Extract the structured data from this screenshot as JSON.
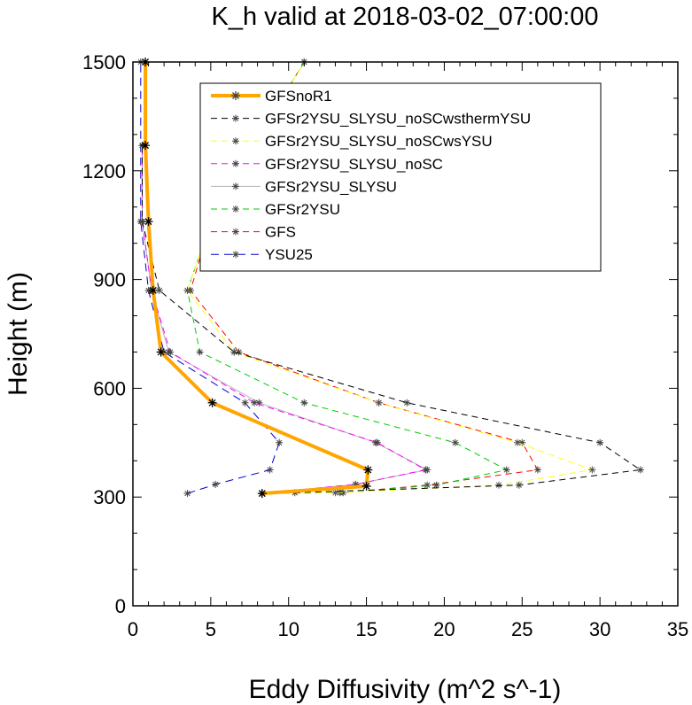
{
  "chart_data": {
    "type": "line",
    "title": "K_h valid at 2018-03-02_07:00:00",
    "xlabel": "Eddy Diffusivity (m^2 s^-1)",
    "ylabel": "Height (m)",
    "xlim": [
      0,
      35
    ],
    "ylim": [
      0,
      1500
    ],
    "xticks": [
      0,
      5,
      10,
      15,
      20,
      25,
      30,
      35
    ],
    "yticks": [
      0,
      300,
      600,
      900,
      1200,
      1500
    ],
    "grid": false,
    "legend_position": "top-center",
    "series": [
      {
        "name": "GFSnoR1",
        "color": "#ffa500",
        "width": 4,
        "dash": "",
        "x": [
          8.3,
          15.0,
          15.1,
          5.1,
          1.8,
          1.3,
          1.0,
          0.8,
          0.8
        ],
        "y": [
          310,
          330,
          375,
          560,
          700,
          870,
          1060,
          1270,
          1500
        ]
      },
      {
        "name": "GFSr2YSU_SLYSU_noSCwsthermYSU",
        "color": "#000000",
        "width": 1,
        "dash": "7,5",
        "x": [
          8.3,
          10.4,
          24.8,
          32.6,
          30.0,
          17.6,
          6.5,
          1.7,
          0.6,
          0.6
        ],
        "y": [
          310,
          312,
          333,
          375,
          450,
          560,
          700,
          870,
          1060,
          1270
        ]
      },
      {
        "name": "GFSr2YSU_SLYSU_noSCwsYSU",
        "color": "#ffff00",
        "width": 1,
        "dash": "7,5",
        "x": [
          8.3,
          13.0,
          23.5,
          29.5,
          24.7,
          15.8,
          6.5,
          3.5,
          5.0,
          7.7,
          11.0
        ],
        "y": [
          310,
          312,
          333,
          375,
          450,
          560,
          700,
          870,
          1060,
          1270,
          1500
        ]
      },
      {
        "name": "GFSr2YSU_SLYSU_noSC",
        "color": "#ff00ff",
        "width": 1,
        "dash": "7,5",
        "x": [
          8.3,
          14.3,
          18.8,
          15.7,
          7.8,
          2.4,
          1.2,
          0.6,
          0.6
        ],
        "y": [
          310,
          335,
          375,
          450,
          560,
          700,
          870,
          1060,
          1270
        ]
      },
      {
        "name": "GFSr2YSU_SLYSU",
        "color": "#b3b3b3",
        "width": 1,
        "dash": "",
        "x": [
          8.3,
          14.3,
          18.9,
          15.6,
          8.1,
          2.3,
          1.2,
          0.6,
          0.6
        ],
        "y": [
          310,
          335,
          375,
          450,
          560,
          700,
          870,
          1060,
          1270
        ]
      },
      {
        "name": "GFSr2YSU",
        "color": "#00cc00",
        "width": 1,
        "dash": "7,5",
        "x": [
          8.3,
          13.3,
          19.5,
          24.0,
          20.7,
          11.0,
          4.3,
          3.5,
          5.0,
          7.7,
          11.0
        ],
        "y": [
          310,
          312,
          333,
          375,
          450,
          560,
          700,
          870,
          1060,
          1270,
          1500
        ]
      },
      {
        "name": "GFS",
        "color": "#ff0000",
        "width": 1,
        "dash": "7,5",
        "x": [
          8.3,
          13.5,
          18.9,
          26.0,
          25.0,
          15.8,
          6.8,
          3.7,
          5.0,
          7.7,
          11.0
        ],
        "y": [
          310,
          312,
          333,
          375,
          450,
          560,
          700,
          870,
          1060,
          1270,
          1500
        ]
      },
      {
        "name": "YSU25",
        "color": "#0000cc",
        "width": 1,
        "dash": "9,6",
        "x": [
          3.5,
          5.3,
          8.8,
          9.4,
          7.2,
          2.0,
          1.0,
          0.5,
          0.5
        ],
        "y": [
          310,
          335,
          375,
          450,
          560,
          700,
          870,
          1060,
          1500
        ]
      }
    ]
  }
}
